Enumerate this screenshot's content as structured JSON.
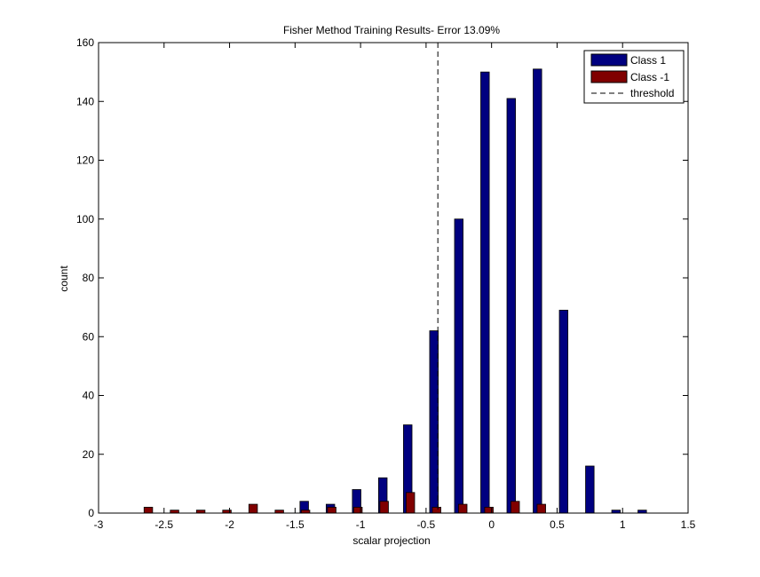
{
  "chart_data": {
    "type": "bar",
    "title": "Fisher Method Training Results- Error 13.09%",
    "xlabel": "scalar projection",
    "ylabel": "count",
    "xlim": [
      -3,
      1.5
    ],
    "ylim": [
      0,
      160
    ],
    "x_ticks": [
      "-3",
      "-2.5",
      "-2",
      "-1.5",
      "-1",
      "-0.5",
      "0",
      "0.5",
      "1",
      "1.5"
    ],
    "y_ticks": [
      "0",
      "20",
      "40",
      "60",
      "80",
      "100",
      "120",
      "140",
      "160"
    ],
    "x_tick_values": [
      -3,
      -2.5,
      -2,
      -1.5,
      -1,
      -0.5,
      0,
      0.5,
      1,
      1.5
    ],
    "y_tick_values": [
      0,
      20,
      40,
      60,
      80,
      100,
      120,
      140,
      160
    ],
    "bin_width": 0.2,
    "grid": false,
    "legend_position": "top-right",
    "series": [
      {
        "name": "Class 1",
        "color": "#000080",
        "bins": [
          {
            "x": -1.43,
            "count": 4
          },
          {
            "x": -1.23,
            "count": 3
          },
          {
            "x": -1.03,
            "count": 8
          },
          {
            "x": -0.83,
            "count": 12
          },
          {
            "x": -0.64,
            "count": 30
          },
          {
            "x": -0.44,
            "count": 62
          },
          {
            "x": -0.25,
            "count": 100
          },
          {
            "x": -0.05,
            "count": 150
          },
          {
            "x": 0.15,
            "count": 141
          },
          {
            "x": 0.35,
            "count": 151
          },
          {
            "x": 0.55,
            "count": 69
          },
          {
            "x": 0.75,
            "count": 16
          },
          {
            "x": 0.95,
            "count": 1
          },
          {
            "x": 1.15,
            "count": 1
          }
        ]
      },
      {
        "name": "Class -1",
        "color": "#800000",
        "bins": [
          {
            "x": -2.62,
            "count": 2
          },
          {
            "x": -2.42,
            "count": 1
          },
          {
            "x": -2.22,
            "count": 1
          },
          {
            "x": -2.02,
            "count": 1
          },
          {
            "x": -1.82,
            "count": 3
          },
          {
            "x": -1.62,
            "count": 1
          },
          {
            "x": -1.42,
            "count": 1
          },
          {
            "x": -1.22,
            "count": 2
          },
          {
            "x": -1.02,
            "count": 2
          },
          {
            "x": -0.82,
            "count": 4
          },
          {
            "x": -0.62,
            "count": 7
          },
          {
            "x": -0.42,
            "count": 2
          },
          {
            "x": -0.22,
            "count": 3
          },
          {
            "x": -0.02,
            "count": 2
          },
          {
            "x": 0.18,
            "count": 4
          },
          {
            "x": 0.38,
            "count": 3
          }
        ]
      }
    ],
    "threshold": {
      "name": "threshold",
      "x": -0.41,
      "style": "dashed",
      "color": "#000000"
    }
  }
}
